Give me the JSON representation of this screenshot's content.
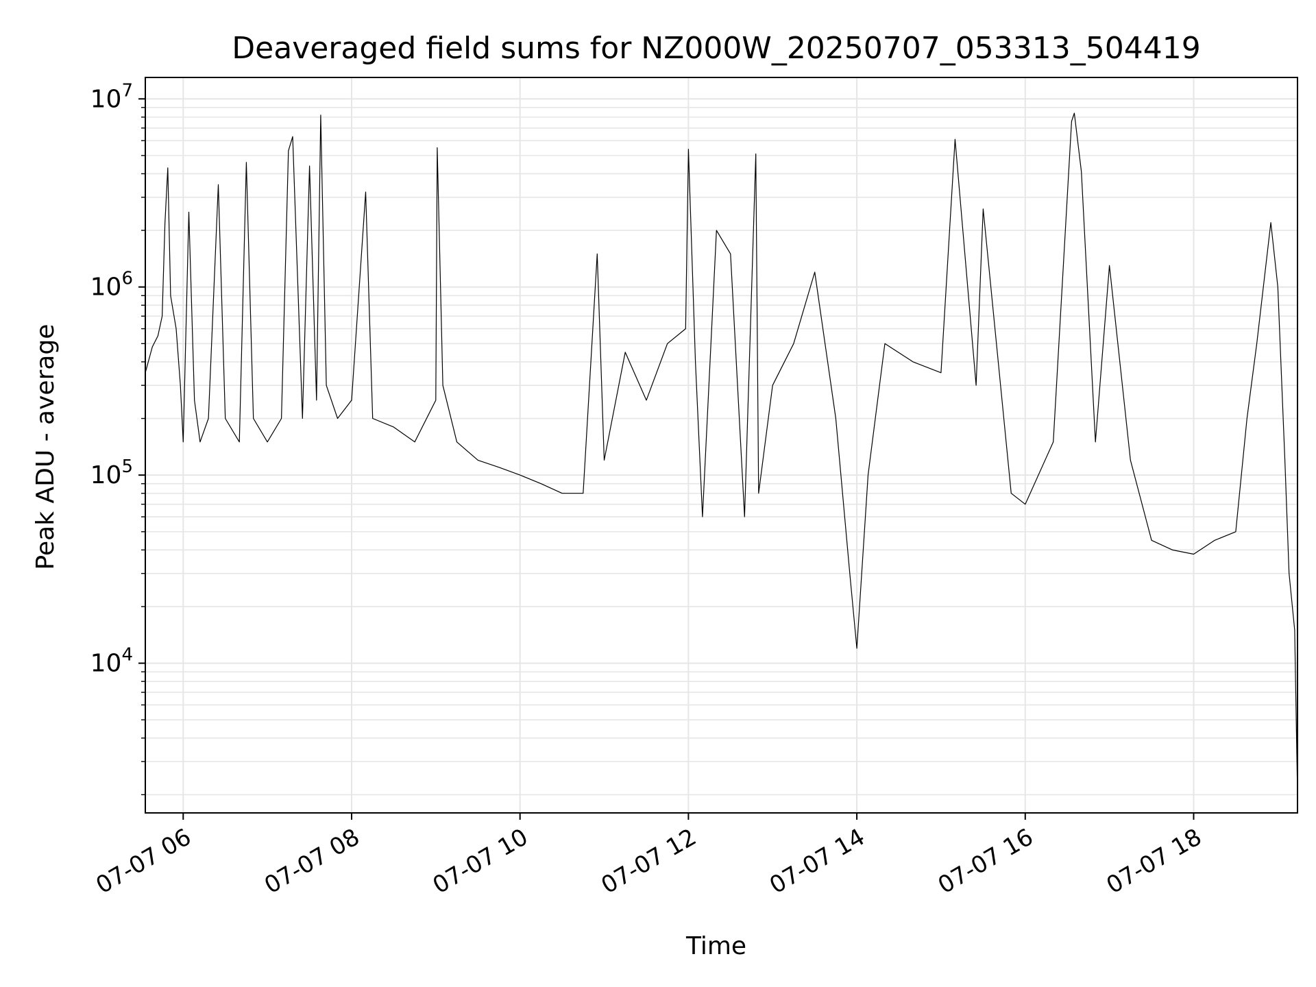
{
  "chart_data": {
    "type": "line",
    "title": "Deaveraged field sums for NZ000W_20250707_053313_504419",
    "xlabel": "Time",
    "ylabel": "Peak ADU - average",
    "yscale": "log",
    "ylim": [
      1600,
      13000000
    ],
    "xlim": [
      "2025-07-07 05:33",
      "2025-07-07 19:14"
    ],
    "grid": true,
    "line_color": "#000000",
    "x_ticks": [
      {
        "value": "2025-07-07 06:00",
        "label": "07-07 06"
      },
      {
        "value": "2025-07-07 08:00",
        "label": "07-07 08"
      },
      {
        "value": "2025-07-07 10:00",
        "label": "07-07 10"
      },
      {
        "value": "2025-07-07 12:00",
        "label": "07-07 12"
      },
      {
        "value": "2025-07-07 14:00",
        "label": "07-07 14"
      },
      {
        "value": "2025-07-07 16:00",
        "label": "07-07 16"
      },
      {
        "value": "2025-07-07 18:00",
        "label": "07-07 18"
      }
    ],
    "y_ticks": [
      {
        "value": 10000,
        "base": "10",
        "exp": "4"
      },
      {
        "value": 100000,
        "base": "10",
        "exp": "5"
      },
      {
        "value": 1000000,
        "base": "10",
        "exp": "6"
      },
      {
        "value": 10000000,
        "base": "10",
        "exp": "7"
      }
    ],
    "series": [
      {
        "points": [
          [
            "2025-07-07 05:33",
            350000
          ],
          [
            "2025-07-07 05:38",
            480000
          ],
          [
            "2025-07-07 05:42",
            550000
          ],
          [
            "2025-07-07 05:45",
            700000
          ],
          [
            "2025-07-07 05:47",
            2200000
          ],
          [
            "2025-07-07 05:49",
            4300000
          ],
          [
            "2025-07-07 05:51",
            900000
          ],
          [
            "2025-07-07 05:55",
            600000
          ],
          [
            "2025-07-07 05:58",
            300000
          ],
          [
            "2025-07-07 06:00",
            150000
          ],
          [
            "2025-07-07 06:04",
            2500000
          ],
          [
            "2025-07-07 06:08",
            250000
          ],
          [
            "2025-07-07 06:12",
            150000
          ],
          [
            "2025-07-07 06:18",
            200000
          ],
          [
            "2025-07-07 06:25",
            3500000
          ],
          [
            "2025-07-07 06:30",
            200000
          ],
          [
            "2025-07-07 06:40",
            150000
          ],
          [
            "2025-07-07 06:45",
            4600000
          ],
          [
            "2025-07-07 06:50",
            200000
          ],
          [
            "2025-07-07 07:00",
            150000
          ],
          [
            "2025-07-07 07:10",
            200000
          ],
          [
            "2025-07-07 07:15",
            5300000
          ],
          [
            "2025-07-07 07:18",
            6300000
          ],
          [
            "2025-07-07 07:25",
            200000
          ],
          [
            "2025-07-07 07:30",
            4400000
          ],
          [
            "2025-07-07 07:35",
            250000
          ],
          [
            "2025-07-07 07:38",
            8200000
          ],
          [
            "2025-07-07 07:42",
            300000
          ],
          [
            "2025-07-07 07:50",
            200000
          ],
          [
            "2025-07-07 08:00",
            250000
          ],
          [
            "2025-07-07 08:10",
            3200000
          ],
          [
            "2025-07-07 08:15",
            200000
          ],
          [
            "2025-07-07 08:30",
            180000
          ],
          [
            "2025-07-07 08:45",
            150000
          ],
          [
            "2025-07-07 09:00",
            250000
          ],
          [
            "2025-07-07 09:01",
            5500000
          ],
          [
            "2025-07-07 09:05",
            300000
          ],
          [
            "2025-07-07 09:15",
            150000
          ],
          [
            "2025-07-07 09:30",
            120000
          ],
          [
            "2025-07-07 09:45",
            110000
          ],
          [
            "2025-07-07 10:00",
            100000
          ],
          [
            "2025-07-07 10:15",
            90000
          ],
          [
            "2025-07-07 10:30",
            80000
          ],
          [
            "2025-07-07 10:45",
            80000
          ],
          [
            "2025-07-07 10:55",
            1500000
          ],
          [
            "2025-07-07 11:00",
            120000
          ],
          [
            "2025-07-07 11:15",
            450000
          ],
          [
            "2025-07-07 11:30",
            250000
          ],
          [
            "2025-07-07 11:45",
            500000
          ],
          [
            "2025-07-07 11:58",
            600000
          ],
          [
            "2025-07-07 12:00",
            5400000
          ],
          [
            "2025-07-07 12:05",
            400000
          ],
          [
            "2025-07-07 12:10",
            60000
          ],
          [
            "2025-07-07 12:20",
            2000000
          ],
          [
            "2025-07-07 12:30",
            1500000
          ],
          [
            "2025-07-07 12:40",
            60000
          ],
          [
            "2025-07-07 12:50",
            80000
          ],
          [
            "2025-07-07 12:48",
            5100000
          ],
          [
            "2025-07-07 13:00",
            300000
          ],
          [
            "2025-07-07 13:15",
            500000
          ],
          [
            "2025-07-07 13:30",
            1200000
          ],
          [
            "2025-07-07 13:45",
            200000
          ],
          [
            "2025-07-07 13:55",
            30000
          ],
          [
            "2025-07-07 14:00",
            12000
          ],
          [
            "2025-07-07 14:08",
            100000
          ],
          [
            "2025-07-07 14:20",
            500000
          ],
          [
            "2025-07-07 14:40",
            400000
          ],
          [
            "2025-07-07 15:00",
            350000
          ],
          [
            "2025-07-07 15:10",
            6100000
          ],
          [
            "2025-07-07 15:25",
            300000
          ],
          [
            "2025-07-07 15:30",
            2600000
          ],
          [
            "2025-07-07 15:50",
            80000
          ],
          [
            "2025-07-07 16:00",
            70000
          ],
          [
            "2025-07-07 16:20",
            150000
          ],
          [
            "2025-07-07 16:33",
            7600000
          ],
          [
            "2025-07-07 16:35",
            8400000
          ],
          [
            "2025-07-07 16:40",
            4100000
          ],
          [
            "2025-07-07 16:50",
            150000
          ],
          [
            "2025-07-07 17:00",
            1300000
          ],
          [
            "2025-07-07 17:15",
            120000
          ],
          [
            "2025-07-07 17:30",
            45000
          ],
          [
            "2025-07-07 17:45",
            40000
          ],
          [
            "2025-07-07 18:00",
            38000
          ],
          [
            "2025-07-07 18:15",
            45000
          ],
          [
            "2025-07-07 18:30",
            50000
          ],
          [
            "2025-07-07 18:38",
            200000
          ],
          [
            "2025-07-07 18:45",
            500000
          ],
          [
            "2025-07-07 18:55",
            2200000
          ],
          [
            "2025-07-07 19:00",
            1000000
          ],
          [
            "2025-07-07 19:05",
            120000
          ],
          [
            "2025-07-07 19:08",
            30000
          ],
          [
            "2025-07-07 19:12",
            15000
          ],
          [
            "2025-07-07 19:14",
            2000
          ]
        ]
      }
    ]
  }
}
